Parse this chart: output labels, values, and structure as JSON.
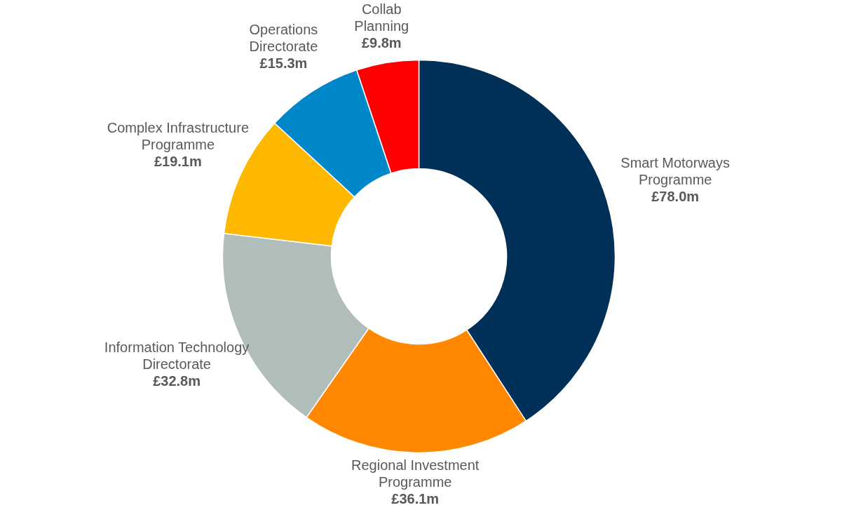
{
  "chart_data": {
    "type": "donut",
    "categories": [
      "Smart Motorways Programme",
      "Regional Investment Programme",
      "Information Technology Directorate",
      "Complex Infrastructure Programme",
      "Operations Directorate",
      "Collab Planning"
    ],
    "values": [
      78.0,
      36.1,
      32.8,
      19.1,
      15.3,
      9.8
    ],
    "value_labels": [
      "£78.0m",
      "£36.1m",
      "£32.8m",
      "£19.1m",
      "£15.3m",
      "£9.8m"
    ],
    "colors": [
      "#003057",
      "#ff8800",
      "#b0bdbb",
      "#ffb800",
      "#0087c9",
      "#ff0000"
    ],
    "legend": false
  }
}
